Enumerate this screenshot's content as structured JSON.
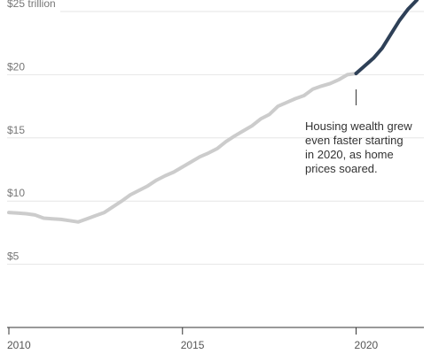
{
  "chart_data": {
    "type": "line",
    "title": "",
    "xlabel": "",
    "ylabel": "",
    "xlim": [
      2010,
      2021.8
    ],
    "ylim": [
      0,
      25
    ],
    "x_ticks": [
      "2010",
      "2015",
      "2020"
    ],
    "y_ticks": [
      {
        "value": 25,
        "label": "$25 trillion"
      },
      {
        "value": 20,
        "label": "$20"
      },
      {
        "value": 15,
        "label": "$15"
      },
      {
        "value": 10,
        "label": "$10"
      },
      {
        "value": 5,
        "label": "$5"
      }
    ],
    "grid": true,
    "series": [
      {
        "color": "#cccccc",
        "x": [
          2010,
          2010.25,
          2010.5,
          2010.75,
          2011,
          2011.25,
          2011.5,
          2011.75,
          2012,
          2012.25,
          2012.5,
          2012.75,
          2013,
          2013.25,
          2013.5,
          2013.75,
          2014,
          2014.25,
          2014.5,
          2014.75,
          2015,
          2015.25,
          2015.5,
          2015.75,
          2016,
          2016.25,
          2016.5,
          2016.75,
          2017,
          2017.25,
          2017.5,
          2017.75,
          2018,
          2018.25,
          2018.5,
          2018.75,
          2019,
          2019.25,
          2019.5,
          2019.75,
          2020
        ],
        "values": [
          9.1,
          9.05,
          9.0,
          8.9,
          8.65,
          8.6,
          8.55,
          8.45,
          8.35,
          8.6,
          8.85,
          9.1,
          9.55,
          10.0,
          10.5,
          10.85,
          11.2,
          11.65,
          12.0,
          12.3,
          12.7,
          13.1,
          13.5,
          13.8,
          14.15,
          14.7,
          15.15,
          15.55,
          15.95,
          16.5,
          16.85,
          17.5,
          17.8,
          18.1,
          18.35,
          18.85,
          19.1,
          19.3,
          19.6,
          20.0,
          20.1
        ]
      },
      {
        "color": "#2e4057",
        "x": [
          2020,
          2020.25,
          2020.5,
          2020.75,
          2021,
          2021.25,
          2021.5,
          2021.75
        ],
        "values": [
          20.1,
          20.7,
          21.3,
          22.1,
          23.2,
          24.3,
          25.2,
          25.9
        ]
      }
    ],
    "annotation": {
      "x": 2020,
      "lines": [
        "Housing wealth grew",
        "even faster starting",
        "in 2020, as home",
        "prices soared."
      ]
    },
    "colors": {
      "grid": "#e6e6e6",
      "axis": "#333333",
      "before_2020": "#cccccc",
      "after_2020": "#2e4057"
    }
  }
}
